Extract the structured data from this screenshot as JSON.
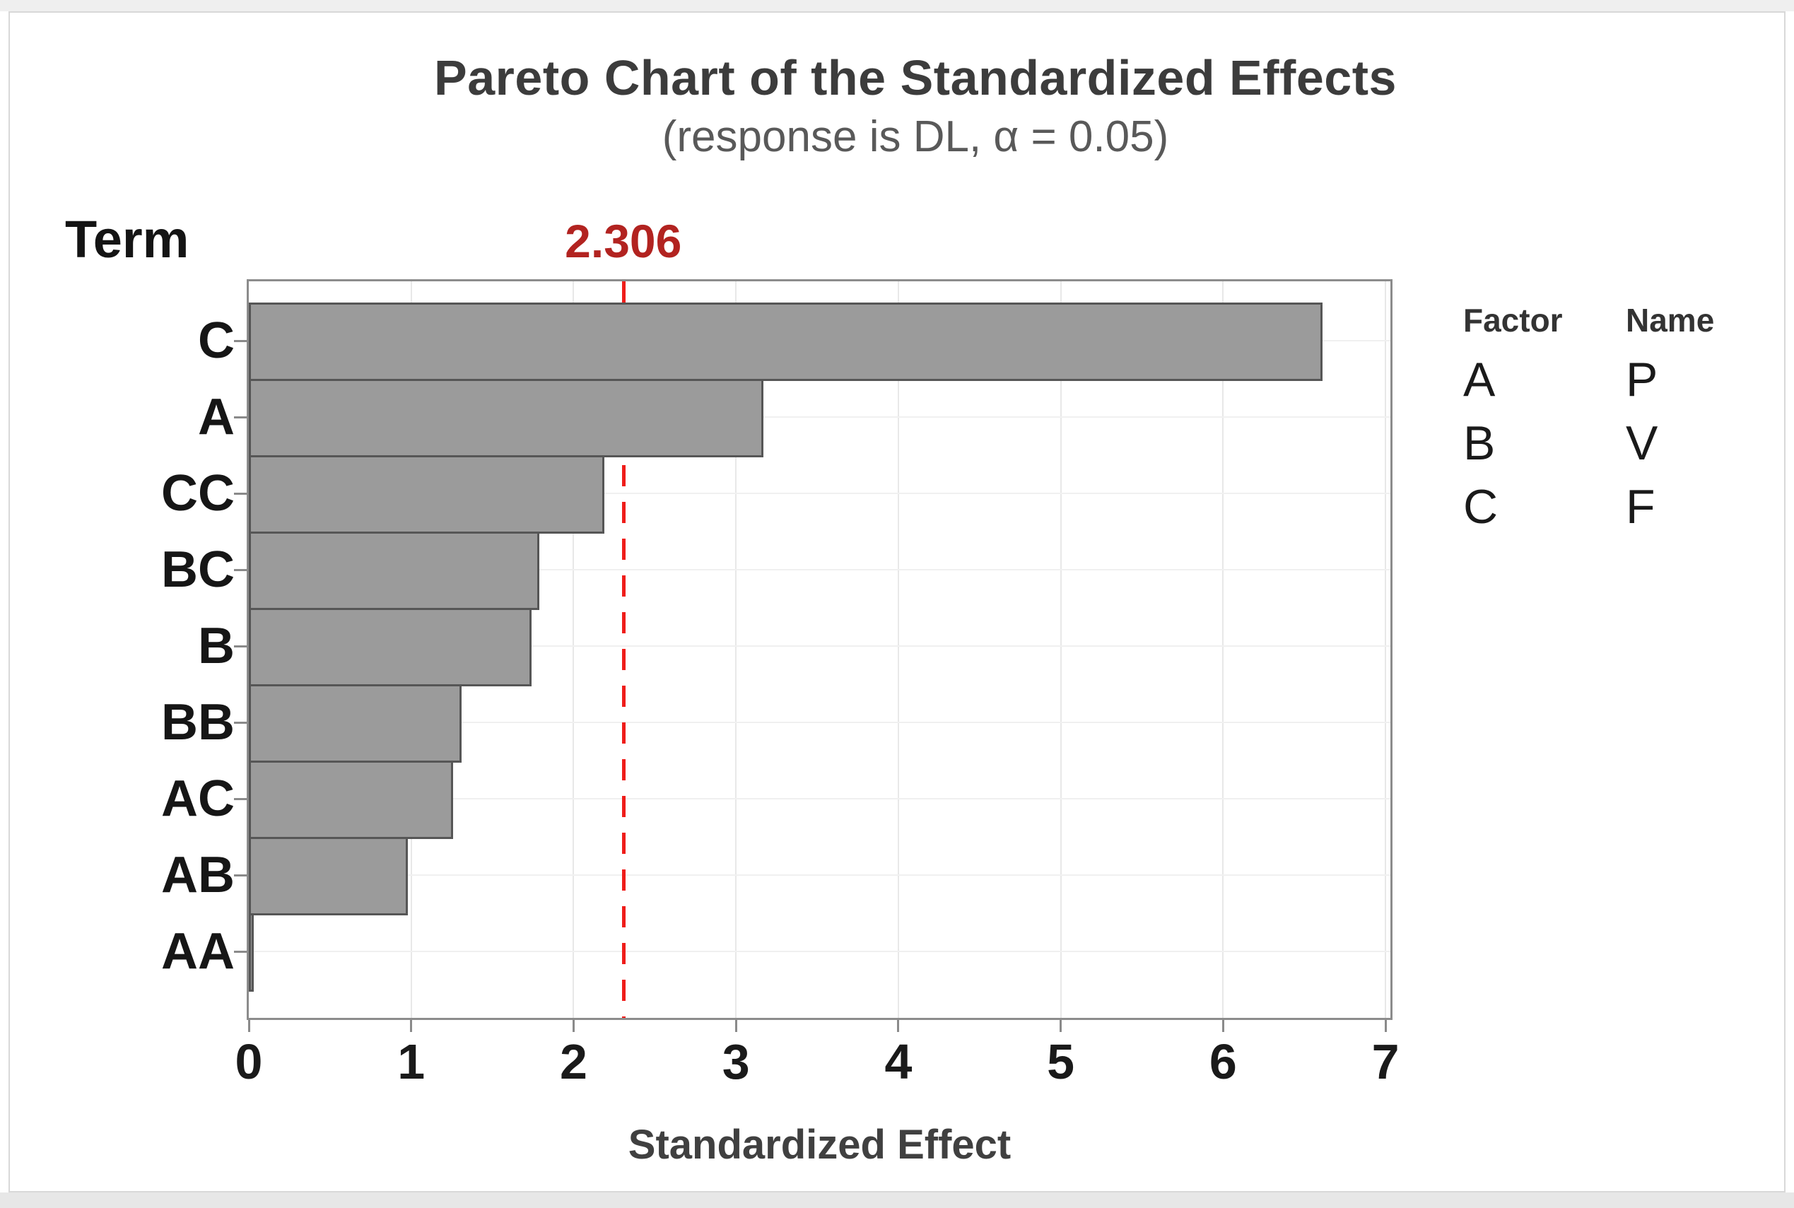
{
  "header": {
    "title": "Pareto Chart of the Standardized Effects",
    "subtitle": "(response is DL, α = 0.05)"
  },
  "chart_data": {
    "type": "bar",
    "orientation": "horizontal",
    "title": "Pareto Chart of the Standardized Effects",
    "subtitle": "(response is DL, α = 0.05)",
    "ylabel": "Term",
    "xlabel": "Standardized Effect",
    "categories": [
      "C",
      "A",
      "CC",
      "BC",
      "B",
      "BB",
      "AC",
      "AB",
      "AA"
    ],
    "values": [
      6.61,
      3.17,
      2.19,
      1.79,
      1.74,
      1.31,
      1.26,
      0.98,
      0.03
    ],
    "reference_line": 2.306,
    "reference_label": "2.306",
    "xticks": [
      "0",
      "1",
      "2",
      "3",
      "4",
      "5",
      "6",
      "7"
    ],
    "xlim": [
      0,
      7.03
    ],
    "grid": "light gridlines at integer x values and at category row centers",
    "legend_position": "right of plot",
    "colors": {
      "bar_fill": "#9b9b9b",
      "bar_border": "#565656",
      "plot_border": "#8c8c8c",
      "gridline": "#e8e8e8",
      "reference_line": "#ef1d1a",
      "reference_label": "#b22320",
      "title": "#3c3c3c",
      "subtitle": "#595959"
    },
    "legend": {
      "headers": [
        "Factor",
        "Name"
      ],
      "rows": [
        {
          "factor": "A",
          "name": "P"
        },
        {
          "factor": "B",
          "name": "V"
        },
        {
          "factor": "C",
          "name": "F"
        }
      ]
    }
  }
}
